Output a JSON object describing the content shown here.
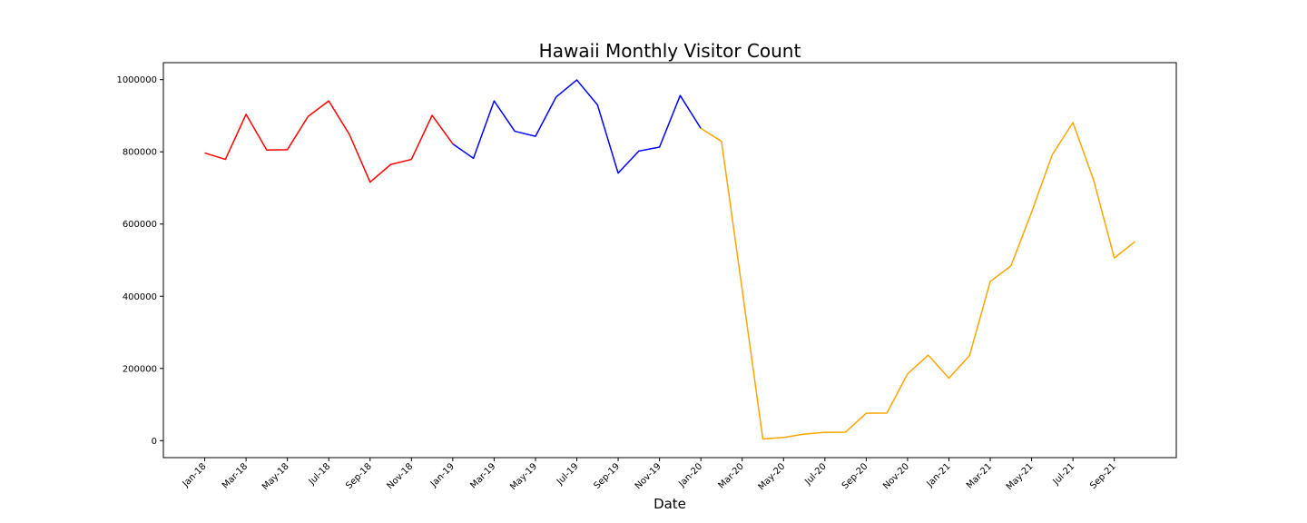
{
  "chart_data": {
    "type": "line",
    "title": "Hawaii Monthly Visitor Count",
    "xlabel": "Date",
    "ylabel": "",
    "x_tick_labels": [
      "Jan-18",
      "Mar-18",
      "May-18",
      "Jul-18",
      "Sep-18",
      "Nov-18",
      "Jan-19",
      "Mar-19",
      "May-19",
      "Jul-19",
      "Sep-19",
      "Nov-19",
      "Jan-20",
      "Mar-20",
      "May-20",
      "Jul-20",
      "Sep-20",
      "Nov-20",
      "Jan-21",
      "Mar-21",
      "May-21",
      "Jul-21",
      "Sep-21"
    ],
    "y_ticks": [
      0,
      200000,
      400000,
      600000,
      800000,
      1000000
    ],
    "y_tick_labels": [
      "0",
      "200000",
      "400000",
      "600000",
      "800000",
      "1000000"
    ],
    "ylim": [
      -47000,
      1047000
    ],
    "xlim": [
      "2017-11",
      "2021-12"
    ],
    "grid": false,
    "legend": "none",
    "series": [
      {
        "color": "#ff0000",
        "x": [
          "2018-01",
          "2018-02",
          "2018-03",
          "2018-04",
          "2018-05",
          "2018-06",
          "2018-07",
          "2018-08",
          "2018-09",
          "2018-10",
          "2018-11",
          "2018-12",
          "2019-01"
        ],
        "values": [
          797000,
          779000,
          904000,
          805000,
          806000,
          898000,
          941000,
          848000,
          716000,
          765000,
          779000,
          901000,
          822000
        ]
      },
      {
        "color": "#0000ff",
        "x": [
          "2019-01",
          "2019-02",
          "2019-03",
          "2019-04",
          "2019-05",
          "2019-06",
          "2019-07",
          "2019-08",
          "2019-09",
          "2019-10",
          "2019-11",
          "2019-12",
          "2020-01"
        ],
        "values": [
          822000,
          782000,
          941000,
          857000,
          843000,
          952000,
          999000,
          930000,
          741000,
          802000,
          813000,
          956000,
          865000
        ]
      },
      {
        "color": "#ffa500",
        "x": [
          "2020-01",
          "2020-02",
          "2020-03",
          "2020-04",
          "2020-05",
          "2020-06",
          "2020-07",
          "2020-08",
          "2020-09",
          "2020-10",
          "2020-11",
          "2020-12",
          "2021-01",
          "2021-02",
          "2021-03",
          "2021-04",
          "2021-05",
          "2021-06",
          "2021-07",
          "2021-08",
          "2021-09",
          "2021-10"
        ],
        "values": [
          865000,
          829000,
          418000,
          4500,
          9000,
          18000,
          23000,
          23500,
          76000,
          76500,
          185000,
          237000,
          173000,
          236000,
          441000,
          484000,
          633000,
          792000,
          881000,
          722000,
          506000,
          551000
        ]
      }
    ]
  }
}
